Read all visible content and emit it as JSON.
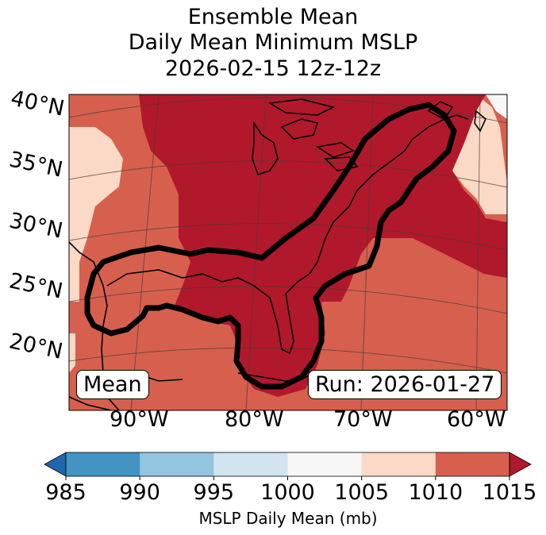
{
  "title": {
    "line1": "Ensemble Mean",
    "line2": "Daily Mean Minimum MSLP",
    "line3": "2026-02-15 12z-12z"
  },
  "map": {
    "lat_labels": [
      "40°N",
      "35°N",
      "30°N",
      "25°N",
      "20°N"
    ],
    "lon_labels": [
      "90°W",
      "80°W",
      "70°W",
      "60°W"
    ],
    "stat_label": "Mean",
    "run_label": "Run: 2026-01-27",
    "contour_description_value_mb": 1010,
    "fill_colors": {
      "c1005_1010": "#fcd9c6",
      "c1010_1015": "#d6604d",
      "c1015_plus": "#b2182b"
    }
  },
  "colorbar": {
    "ticks": [
      "985",
      "990",
      "995",
      "1000",
      "1005",
      "1010",
      "1015"
    ],
    "label": "MSLP Daily Mean (mb)",
    "bins": [
      {
        "range": "<985",
        "color": "#2166ac"
      },
      {
        "range": "985-990",
        "color": "#4393c3"
      },
      {
        "range": "990-995",
        "color": "#92c5de"
      },
      {
        "range": "995-1000",
        "color": "#d1e5f0"
      },
      {
        "range": "1000-1005",
        "color": "#f7f7f7"
      },
      {
        "range": "1005-1010",
        "color": "#fcd9c6"
      },
      {
        "range": "1010-1015",
        "color": "#d6604d"
      },
      {
        "range": ">1015",
        "color": "#b2182b"
      }
    ]
  }
}
